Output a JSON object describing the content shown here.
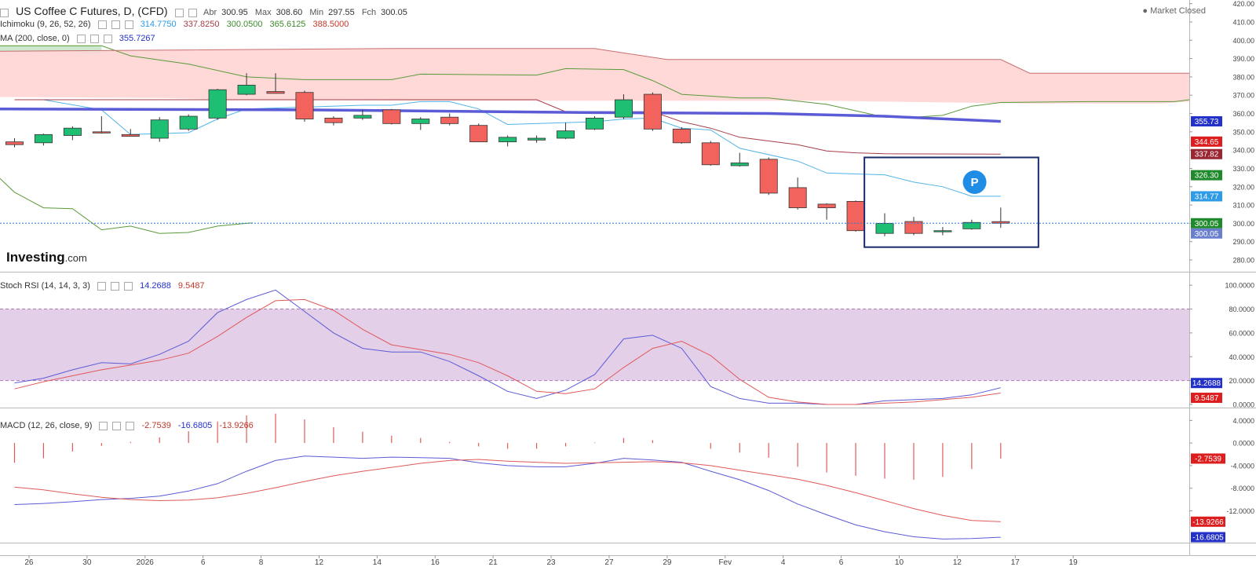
{
  "header": {
    "symbol": "US Coffee C Futures, D, (CFD)",
    "open_label": "Abr",
    "open": "300.95",
    "high_label": "Max",
    "high": "308.60",
    "low_label": "Min",
    "low": "297.55",
    "close_label": "Fch",
    "close": "300.05",
    "market_status": "Market Closed",
    "brand": "Investing",
    "brand_suffix": ".com"
  },
  "indicators": {
    "ichimoku": {
      "label": "Ichimoku (9, 26, 52, 26)",
      "values": [
        "314.7750",
        "337.8250",
        "300.0500",
        "365.6125",
        "388.5000"
      ]
    },
    "ma": {
      "label": "MA (200, close, 0)",
      "value": "355.7267"
    },
    "stoch": {
      "label": "Stoch RSI (14, 14, 3, 3)",
      "k": "14.2688",
      "d": "9.5487"
    },
    "macd": {
      "label": "MACD (12, 26, close, 9)",
      "hist": "-2.7539",
      "macd": "-16.6805",
      "signal": "-13.9266"
    }
  },
  "badge": "P",
  "chart_data": [
    {
      "type": "candlestick",
      "title": "US Coffee C Futures, D, (CFD)",
      "xlim": [
        -0.5,
        40.5
      ],
      "ylim": [
        274,
        422
      ],
      "yticks": [
        280,
        290,
        300,
        310,
        320,
        330,
        340,
        350,
        360,
        370,
        380,
        390,
        400,
        410,
        420
      ],
      "ytick_labels": [
        "280.00",
        "290.00",
        "300.00",
        "310.00",
        "320.00",
        "330.00",
        "340.00",
        "350.00",
        "360.00",
        "370.00",
        "380.00",
        "390.00",
        "400.00",
        "410.00",
        "420.00"
      ],
      "x_ticks": [
        {
          "i": 0.5,
          "label": "26"
        },
        {
          "i": 2.5,
          "label": "30"
        },
        {
          "i": 4.5,
          "label": "2026"
        },
        {
          "i": 6.5,
          "label": "6"
        },
        {
          "i": 8.5,
          "label": "8"
        },
        {
          "i": 10.5,
          "label": "12"
        },
        {
          "i": 12.5,
          "label": "14"
        },
        {
          "i": 14.5,
          "label": "16"
        },
        {
          "i": 16.5,
          "label": "21"
        },
        {
          "i": 18.5,
          "label": "23"
        },
        {
          "i": 20.5,
          "label": "27"
        },
        {
          "i": 22.5,
          "label": "29"
        },
        {
          "i": 24.5,
          "label": "Fev"
        },
        {
          "i": 26.5,
          "label": "4"
        },
        {
          "i": 28.5,
          "label": "6"
        },
        {
          "i": 30.5,
          "label": "10"
        },
        {
          "i": 32.5,
          "label": "12"
        },
        {
          "i": 34.5,
          "label": "17"
        },
        {
          "i": 36.5,
          "label": "19"
        }
      ],
      "candles": [
        {
          "o": 344.5,
          "h": 346.5,
          "l": 341.5,
          "c": 343.0
        },
        {
          "o": 344.0,
          "h": 349.0,
          "l": 342.5,
          "c": 348.5
        },
        {
          "o": 348.0,
          "h": 353.0,
          "l": 345.5,
          "c": 352.0
        },
        {
          "o": 350.0,
          "h": 358.5,
          "l": 349.0,
          "c": 349.5
        },
        {
          "o": 348.5,
          "h": 351.5,
          "l": 347.5,
          "c": 347.5
        },
        {
          "o": 346.5,
          "h": 358.0,
          "l": 344.5,
          "c": 356.5
        },
        {
          "o": 351.5,
          "h": 359.5,
          "l": 350.5,
          "c": 358.5
        },
        {
          "o": 357.5,
          "h": 373.5,
          "l": 356.5,
          "c": 373.0
        },
        {
          "o": 370.5,
          "h": 382.0,
          "l": 370.0,
          "c": 375.5
        },
        {
          "o": 372.0,
          "h": 382.0,
          "l": 371.0,
          "c": 371.0
        },
        {
          "o": 371.5,
          "h": 372.5,
          "l": 355.5,
          "c": 357.0
        },
        {
          "o": 357.5,
          "h": 358.5,
          "l": 353.5,
          "c": 355.0
        },
        {
          "o": 357.5,
          "h": 362.0,
          "l": 356.5,
          "c": 359.0
        },
        {
          "o": 362.0,
          "h": 362.5,
          "l": 354.0,
          "c": 354.5
        },
        {
          "o": 354.5,
          "h": 358.0,
          "l": 351.0,
          "c": 357.0
        },
        {
          "o": 358.0,
          "h": 360.0,
          "l": 353.5,
          "c": 354.5
        },
        {
          "o": 353.5,
          "h": 354.5,
          "l": 344.5,
          "c": 344.5
        },
        {
          "o": 344.5,
          "h": 348.0,
          "l": 342.0,
          "c": 347.0
        },
        {
          "o": 345.5,
          "h": 348.0,
          "l": 344.0,
          "c": 346.5
        },
        {
          "o": 346.5,
          "h": 355.0,
          "l": 346.0,
          "c": 350.5
        },
        {
          "o": 351.5,
          "h": 358.5,
          "l": 351.0,
          "c": 357.5
        },
        {
          "o": 358.0,
          "h": 370.5,
          "l": 357.0,
          "c": 367.5
        },
        {
          "o": 370.5,
          "h": 371.5,
          "l": 350.5,
          "c": 351.5
        },
        {
          "o": 351.5,
          "h": 352.5,
          "l": 343.5,
          "c": 344.0
        },
        {
          "o": 344.0,
          "h": 345.0,
          "l": 331.5,
          "c": 332.0
        },
        {
          "o": 331.5,
          "h": 338.5,
          "l": 331.0,
          "c": 333.0
        },
        {
          "o": 335.0,
          "h": 336.0,
          "l": 315.5,
          "c": 316.5
        },
        {
          "o": 319.5,
          "h": 325.0,
          "l": 307.5,
          "c": 308.5
        },
        {
          "o": 310.5,
          "h": 311.0,
          "l": 302.0,
          "c": 308.5
        },
        {
          "o": 312.0,
          "h": 312.5,
          "l": 295.5,
          "c": 296.0
        },
        {
          "o": 294.5,
          "h": 305.5,
          "l": 293.0,
          "c": 300.0
        },
        {
          "o": 301.0,
          "h": 303.5,
          "l": 293.5,
          "c": 294.5
        },
        {
          "o": 295.5,
          "h": 298.0,
          "l": 293.5,
          "c": 296.0
        },
        {
          "o": 297.0,
          "h": 302.0,
          "l": 296.5,
          "c": 300.5
        },
        {
          "o": 300.95,
          "h": 308.6,
          "l": 297.55,
          "c": 300.05
        }
      ],
      "overlays": [
        {
          "name": "Tenkan-sen",
          "color": "#4fb3e6",
          "points": [
            [
              1,
              367.5
            ],
            [
              3,
              362
            ],
            [
              4,
              348.5
            ],
            [
              6,
              349.5
            ],
            [
              7,
              357
            ],
            [
              8,
              362.5
            ],
            [
              12,
              364.5
            ],
            [
              13,
              364.5
            ],
            [
              14,
              366.5
            ],
            [
              15,
              366.5
            ],
            [
              16,
              362.5
            ],
            [
              17,
              354
            ],
            [
              20,
              355.5
            ],
            [
              21,
              357
            ],
            [
              22,
              357.5
            ],
            [
              23,
              352
            ],
            [
              24,
              351
            ],
            [
              25,
              341
            ],
            [
              27,
              334
            ],
            [
              28,
              327.5
            ],
            [
              29,
              327
            ],
            [
              30,
              326.5
            ],
            [
              31,
              322.5
            ],
            [
              32,
              320
            ],
            [
              33,
              314.8
            ],
            [
              34,
              314.8
            ]
          ]
        },
        {
          "name": "Kijun-sen",
          "color": "#a63e48",
          "points": [
            [
              0,
              367.5
            ],
            [
              18,
              367.5
            ],
            [
              19,
              361
            ],
            [
              22,
              361
            ],
            [
              23,
              355.5
            ],
            [
              24,
              352
            ],
            [
              25,
              347
            ],
            [
              27,
              343
            ],
            [
              28,
              339.5
            ],
            [
              29,
              338.5
            ],
            [
              30,
              338
            ],
            [
              34,
              337.8
            ]
          ]
        },
        {
          "name": "Chikou Span",
          "color": "#5a9a3a",
          "points": [
            [
              -1,
              332
            ],
            [
              0,
              317
            ],
            [
              1,
              308.5
            ],
            [
              2,
              308
            ],
            [
              3,
              296.5
            ],
            [
              4,
              298.5
            ],
            [
              5,
              294.5
            ],
            [
              6,
              295
            ],
            [
              7,
              298.5
            ],
            [
              8,
              300
            ],
            [
              8.2,
              300.3
            ]
          ]
        },
        {
          "name": "MA 200",
          "color": "#5b5bd6",
          "width": 3.5,
          "points": [
            [
              -0.5,
              362.5
            ],
            [
              10,
              362.0
            ],
            [
              20,
              360.5
            ],
            [
              26,
              360.0
            ],
            [
              30,
              358.5
            ],
            [
              34,
              355.7
            ]
          ]
        }
      ],
      "cloud": {
        "fill": "#ffd8d8",
        "leading_b": [
          [
            -0.5,
            369
          ],
          [
            5,
            368.5
          ],
          [
            8,
            367.5
          ],
          [
            15,
            367
          ],
          [
            28,
            367
          ],
          [
            30,
            366.5
          ],
          [
            35,
            365.5
          ],
          [
            39.5,
            365.5
          ],
          [
            40.5,
            366.5
          ]
        ],
        "leading_b2": [
          [
            -0.5,
            394
          ],
          [
            13,
            395.5
          ],
          [
            20,
            395.5
          ],
          [
            22.5,
            389.5
          ],
          [
            34,
            389.5
          ],
          [
            35,
            382
          ],
          [
            40.5,
            382
          ]
        ],
        "span_a_color": "#5a9a3a",
        "span_a": [
          [
            -0.5,
            397
          ],
          [
            3,
            397
          ],
          [
            4,
            391.5
          ],
          [
            6,
            387
          ],
          [
            8,
            380
          ],
          [
            10,
            378.5
          ],
          [
            13,
            378.5
          ],
          [
            14,
            381.5
          ],
          [
            18,
            381
          ],
          [
            19,
            384.5
          ],
          [
            21,
            384
          ],
          [
            22,
            378
          ],
          [
            23,
            370.5
          ],
          [
            25,
            368.5
          ],
          [
            26,
            368.5
          ],
          [
            28,
            365
          ],
          [
            30,
            358
          ],
          [
            31,
            358
          ],
          [
            32,
            359
          ],
          [
            33,
            364
          ],
          [
            34,
            366
          ],
          [
            37,
            366.5
          ],
          [
            40,
            366.5
          ],
          [
            40.5,
            367.5
          ]
        ],
        "span_b_color": "#c86e6e",
        "span_b": [
          [
            -0.5,
            394
          ],
          [
            13,
            395.5
          ],
          [
            20,
            395.5
          ],
          [
            22.5,
            389.5
          ],
          [
            34,
            389.5
          ],
          [
            35,
            382
          ],
          [
            40.5,
            382
          ]
        ],
        "top_green_fill": "#cde8cf",
        "top_green": [
          [
            -0.5,
            397
          ],
          [
            3,
            397
          ],
          [
            3,
            394
          ],
          [
            -0.5,
            394
          ]
        ]
      },
      "price_line": 300.05,
      "highlight_box": {
        "x0": 29.3,
        "x1": 35.3,
        "y0": 287,
        "y1": 336
      },
      "right_labels": [
        {
          "value": 355.73,
          "text": "355.73",
          "bg": "#2331c9"
        },
        {
          "value": 344.65,
          "text": "344.65",
          "bg": "#dd1e1e"
        },
        {
          "value": 337.82,
          "text": "337.82",
          "bg": "#9b2633"
        },
        {
          "value": 326.3,
          "text": "326.30",
          "bg": "#1f8a2b"
        },
        {
          "value": 314.77,
          "text": "314.77",
          "bg": "#2e9be6"
        },
        {
          "value": 300.05,
          "text": "300.05",
          "bg": "#1f8a2b"
        }
      ],
      "right_label_under": {
        "text": "300.05",
        "bg": "#6b7fcf"
      }
    },
    {
      "type": "line",
      "title": "Stoch RSI (14, 14, 3, 3)",
      "ylim": [
        -2,
        110
      ],
      "yticks": [
        0,
        20,
        40,
        60,
        80,
        100
      ],
      "ytick_labels": [
        "0.0000",
        "20.0000",
        "40.0000",
        "60.0000",
        "80.0000",
        "100.0000"
      ],
      "band": [
        20,
        80
      ],
      "band_color": "#e4cfe9",
      "series": [
        {
          "name": "%K",
          "color": "#5b5bd6",
          "value_label": "14.2688",
          "values": [
            18,
            22,
            29,
            35,
            34,
            42,
            53,
            77,
            88,
            96,
            78,
            60,
            47,
            44,
            44,
            36,
            24,
            11,
            5,
            12,
            25,
            55,
            58,
            47,
            15,
            5,
            1,
            1,
            0,
            0,
            3,
            4,
            5,
            8,
            14
          ]
        },
        {
          "name": "%D",
          "color": "#e05959",
          "value_label": "9.5487",
          "values": [
            13,
            19,
            24,
            29,
            33,
            37,
            43,
            57,
            73,
            87,
            88,
            79,
            63,
            50,
            46,
            42,
            35,
            24,
            11,
            9,
            13,
            31,
            47,
            53,
            41,
            21,
            6,
            2,
            0,
            0,
            1,
            2,
            4,
            6,
            9.5
          ]
        }
      ]
    },
    {
      "type": "line",
      "title": "MACD (12, 26, close, 9)",
      "ylim": [
        -17.5,
        6
      ],
      "yticks": [
        4,
        0,
        -4,
        -8,
        -12
      ],
      "ytick_labels": [
        "4.0000",
        "0.0000",
        "-4.0000",
        "-8.0000",
        "-12.0000"
      ],
      "series": [
        {
          "name": "MACD",
          "color": "#5b5bd6",
          "value_label": "-16.6805",
          "values": [
            -10.9,
            -10.7,
            -10.4,
            -10.0,
            -9.8,
            -9.4,
            -8.5,
            -7.2,
            -5.0,
            -3.1,
            -2.3,
            -2.5,
            -2.7,
            -2.5,
            -2.6,
            -2.7,
            -3.5,
            -4.0,
            -4.2,
            -4.2,
            -3.6,
            -2.7,
            -3.0,
            -3.4,
            -5.0,
            -6.5,
            -8.4,
            -10.8,
            -12.7,
            -14.5,
            -15.7,
            -16.6,
            -17.0,
            -16.9,
            -16.6805
          ]
        },
        {
          "name": "Signal",
          "color": "#e05959",
          "value_label": "-13.9266",
          "values": [
            -7.8,
            -8.3,
            -9.0,
            -9.6,
            -10.0,
            -10.2,
            -10.1,
            -9.7,
            -8.9,
            -7.9,
            -6.8,
            -5.8,
            -5.0,
            -4.3,
            -3.6,
            -3.1,
            -2.9,
            -3.2,
            -3.4,
            -3.6,
            -3.5,
            -3.4,
            -3.3,
            -3.5,
            -4.0,
            -4.8,
            -5.6,
            -6.4,
            -7.5,
            -8.8,
            -10.2,
            -11.6,
            -12.8,
            -13.7,
            -13.9266
          ]
        },
        {
          "name": "Histogram",
          "color": "#e05959",
          "value_label": "-2.7539",
          "values": [
            -3.5,
            -2.7,
            -1.5,
            -0.5,
            0.2,
            1.0,
            2.1,
            3.8,
            4.9,
            5.2,
            4.2,
            2.8,
            2.0,
            1.3,
            0.9,
            0.2,
            -0.6,
            -1.0,
            -1.0,
            -0.6,
            0.1,
            0.9,
            0.5,
            0.0,
            -1.0,
            -1.7,
            -2.6,
            -4.2,
            -5.2,
            -5.8,
            -6.3,
            -6.5,
            -6.0,
            -4.6,
            -2.7539
          ]
        }
      ]
    }
  ]
}
